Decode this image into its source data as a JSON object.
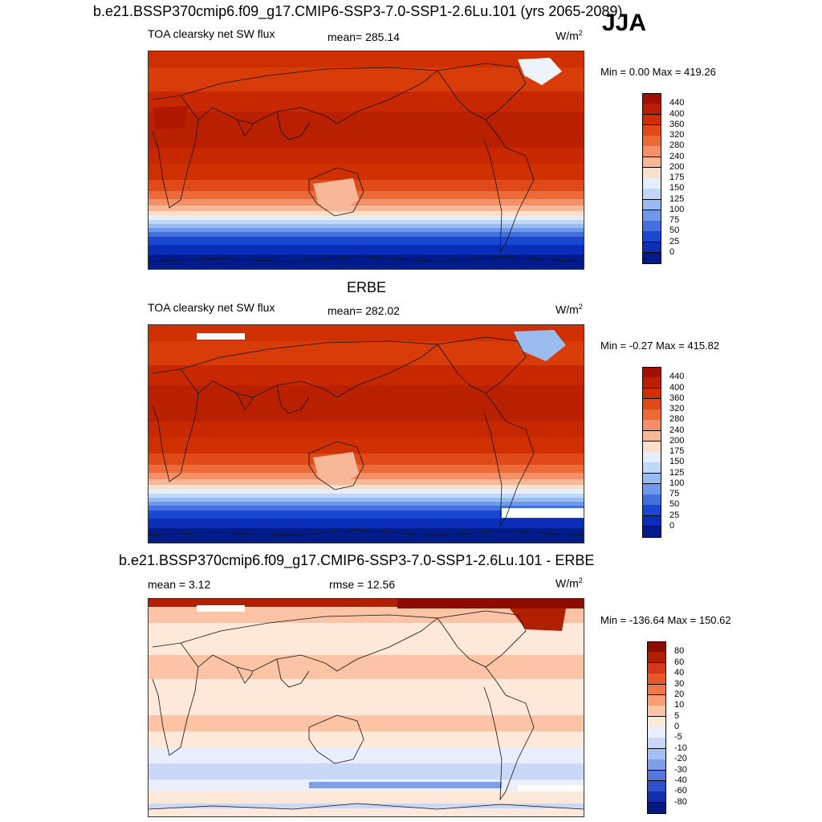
{
  "main_title": "b.e21.BSSP370cmip6.f09_g17.CMIP6-SSP3-7.0-SSP1-2.6Lu.101 (yrs 2065-2089)",
  "season": "JJA",
  "panel1": {
    "variable": "TOA clearsky net SW flux",
    "mean": "mean= 285.14",
    "units": "W/m",
    "units_exp": "2",
    "minmax": "Min =   0.00 Max = 419.26"
  },
  "panel2": {
    "title": "ERBE",
    "variable": "TOA clearsky net SW flux",
    "mean": "mean= 282.02",
    "units": "W/m",
    "units_exp": "2",
    "minmax": "Min =  -0.27 Max = 415.82"
  },
  "panel3": {
    "title": "b.e21.BSSP370cmip6.f09_g17.CMIP6-SSP3-7.0-SSP1-2.6Lu.101 - ERBE",
    "mean": "mean =   3.12",
    "rmse": "rmse =  12.56",
    "units": "W/m",
    "units_exp": "2",
    "minmax": "Min = -136.64 Max = 150.62"
  },
  "chart_data": [
    {
      "type": "heatmap",
      "title": "TOA clearsky net SW flux",
      "units": "W/m2",
      "mean": 285.14,
      "min": 0.0,
      "max": 419.26,
      "colorbar_levels": [
        "440",
        "400",
        "360",
        "320",
        "280",
        "240",
        "200",
        "175",
        "150",
        "125",
        "100",
        "75",
        "50",
        "25",
        "0"
      ],
      "colorbar_colors": [
        "#a01000",
        "#b82000",
        "#d03000",
        "#e04a18",
        "#ec6a38",
        "#f49068",
        "#f8b898",
        "#fde0cc",
        "#e4eefc",
        "#c0d8f8",
        "#98bcf2",
        "#6e98ea",
        "#4470de",
        "#1a48d0",
        "#0a2eb8",
        "#001c8a"
      ]
    },
    {
      "type": "heatmap",
      "title": "ERBE",
      "units": "W/m2",
      "mean": 282.02,
      "min": -0.27,
      "max": 415.82,
      "colorbar_levels": [
        "440",
        "400",
        "360",
        "320",
        "280",
        "240",
        "200",
        "175",
        "150",
        "125",
        "100",
        "75",
        "50",
        "25",
        "0"
      ],
      "colorbar_colors": [
        "#a01000",
        "#b82000",
        "#d03000",
        "#e04a18",
        "#ec6a38",
        "#f49068",
        "#f8b898",
        "#fde0cc",
        "#e4eefc",
        "#c0d8f8",
        "#98bcf2",
        "#6e98ea",
        "#4470de",
        "#1a48d0",
        "#0a2eb8",
        "#001c8a"
      ]
    },
    {
      "type": "heatmap",
      "title": "b.e21.BSSP370cmip6.f09_g17.CMIP6-SSP3-7.0-SSP1-2.6Lu.101 - ERBE",
      "units": "W/m2",
      "mean": 3.12,
      "rmse": 12.56,
      "min": -136.64,
      "max": 150.62,
      "colorbar_levels": [
        "80",
        "60",
        "40",
        "30",
        "20",
        "10",
        "5",
        "0",
        "-5",
        "-10",
        "-20",
        "-30",
        "-40",
        "-60",
        "-80"
      ],
      "colorbar_colors": [
        "#8c0c00",
        "#b02000",
        "#d43818",
        "#e85828",
        "#f07848",
        "#f89c74",
        "#fcc4a4",
        "#fde8da",
        "#e8eefc",
        "#c8d8f6",
        "#a6bef0",
        "#7e9ee8",
        "#5678dc",
        "#2e52cc",
        "#1030b0",
        "#041a80"
      ]
    }
  ]
}
